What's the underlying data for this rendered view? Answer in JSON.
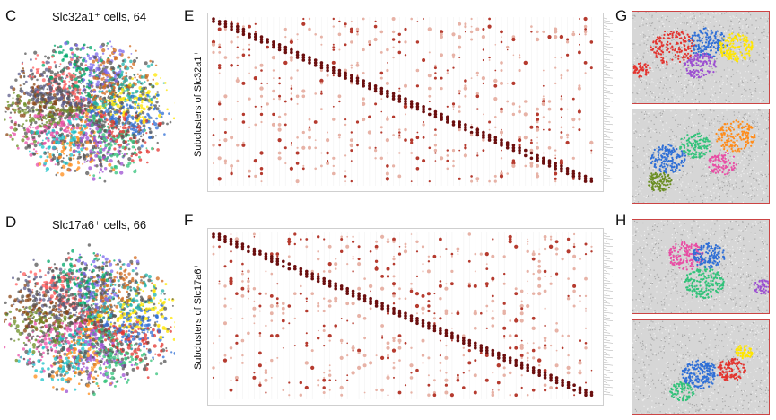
{
  "panels": {
    "C": {
      "letter": "C",
      "title": "Slc32a1⁺ cells, 64"
    },
    "D": {
      "letter": "D",
      "title": "Slc17a6⁺ cells, 66"
    },
    "E": {
      "letter": "E",
      "ylabel": "Subclusters of Slc32a1⁺"
    },
    "F": {
      "letter": "F",
      "ylabel": "Subclusters of Slc17a6⁺"
    },
    "G": {
      "letter": "G"
    },
    "H": {
      "letter": "H"
    }
  },
  "colors": {
    "frame": "#c44444",
    "dot_strong": "#6b0f0f",
    "dot_mid": "#b53a2e",
    "dot_weak": "#e7b2a6",
    "section_bg": "#d5d5d5"
  },
  "cluster_palette": [
    "#ffe600",
    "#2f6fd6",
    "#e3342f",
    "#33c27a",
    "#9c4fd1",
    "#ff8c1a",
    "#1cc3c9",
    "#e84fa5",
    "#6b8e23",
    "#8b4513",
    "#5c5c8a",
    "#ff5c5c",
    "#00a86b",
    "#7b68ee",
    "#d2691e",
    "#20b2aa"
  ]
}
